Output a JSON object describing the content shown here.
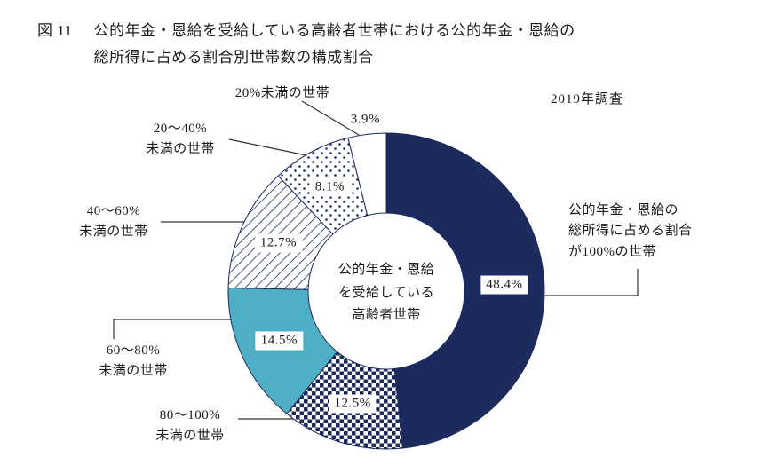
{
  "figure": {
    "label": "図 11",
    "title_line1": "公的年金・恩給を受給している高齢者世帯における公的年金・恩給の",
    "title_line2": "総所得に占める割合別世帯数の構成割合",
    "survey_note": "2019年調査"
  },
  "chart_data": {
    "type": "pie",
    "variant": "donut",
    "title": "公的年金・恩給を受給している高齢者世帯における公的年金・恩給の総所得に占める割合別世帯数の構成割合",
    "units": "%",
    "direction": "clockwise",
    "start_angle_deg": 0,
    "center_label_lines": [
      "公的年金・恩給",
      "を受給している",
      "高齢者世帯"
    ],
    "slices": [
      {
        "label": "公的年金・恩給の総所得に占める割合が100%の世帯",
        "value": 48.4,
        "style": "solid-navy"
      },
      {
        "label": "80〜100%未満の世帯",
        "value": 12.5,
        "style": "checker"
      },
      {
        "label": "60〜80%未満の世帯",
        "value": 14.5,
        "style": "solid-teal"
      },
      {
        "label": "40〜60%未満の世帯",
        "value": 12.7,
        "style": "hatch"
      },
      {
        "label": "20〜40%未満の世帯",
        "value": 8.1,
        "style": "dots"
      },
      {
        "label": "20%未満の世帯",
        "value": 3.9,
        "style": "white"
      }
    ],
    "colors": {
      "navy": "#1c2a5e",
      "teal": "#4fb0c5",
      "white": "#ffffff",
      "text": "#1a1a1a"
    },
    "callouts": {
      "under20": "20%未満の世帯",
      "b20_40_l1": "20〜40%",
      "b20_40_l2": "未満の世帯",
      "b40_60_l1": "40〜60%",
      "b40_60_l2": "未満の世帯",
      "b60_80_l1": "60〜80%",
      "b60_80_l2": "未満の世帯",
      "b80_100_l1": "80〜100%",
      "b80_100_l2": "未満の世帯",
      "full_l1": "公的年金・恩給の",
      "full_l2": "総所得に占める割合",
      "full_l3": "が100%の世帯"
    }
  }
}
